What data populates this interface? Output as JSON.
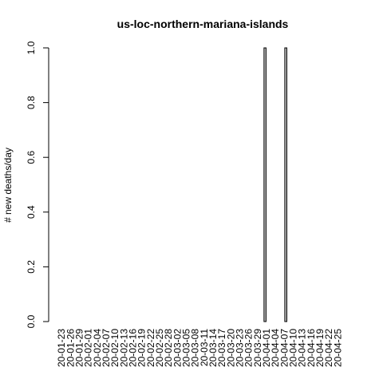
{
  "chart_data": {
    "type": "bar",
    "title": "us-loc-northern-mariana-islands",
    "xlabel": "",
    "ylabel": "# new deaths/day",
    "ylim": [
      0,
      1
    ],
    "yticks": [
      "0.0",
      "0.2",
      "0.4",
      "0.6",
      "0.8",
      "1.0"
    ],
    "start_date": "2020-01-22",
    "end_date": "2020-04-27",
    "tick_labels": [
      "20-01-23",
      "20-01-26",
      "20-01-29",
      "20-02-01",
      "20-02-04",
      "20-02-07",
      "20-02-10",
      "20-02-13",
      "20-02-16",
      "20-02-19",
      "20-02-22",
      "20-02-25",
      "20-02-28",
      "20-03-02",
      "20-03-05",
      "20-03-08",
      "20-03-11",
      "20-03-14",
      "20-03-17",
      "20-03-20",
      "20-03-23",
      "20-03-26",
      "20-03-29",
      "20-04-01",
      "20-04-04",
      "20-04-07",
      "20-04-10",
      "20-04-13",
      "20-04-16",
      "20-04-19",
      "20-04-22",
      "20-04-25"
    ],
    "nonzero": [
      {
        "date": "2020-03-31",
        "value": 1
      },
      {
        "date": "2020-04-07",
        "value": 1
      }
    ]
  }
}
